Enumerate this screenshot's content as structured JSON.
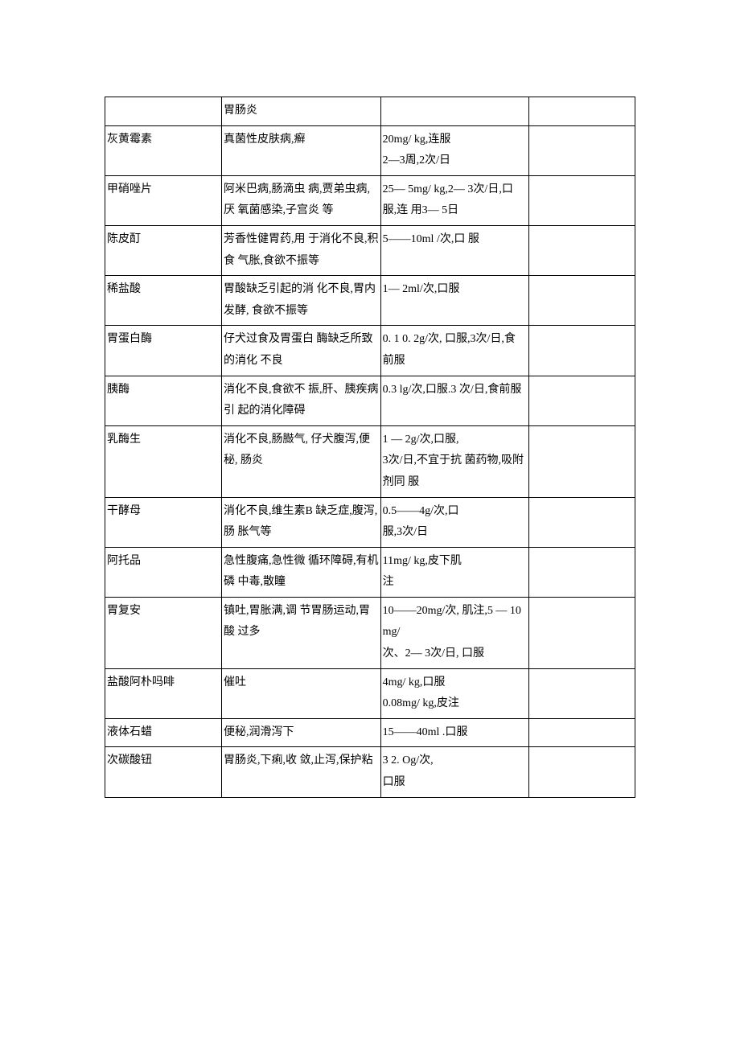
{
  "table": {
    "columns": 4,
    "border_color": "#000000",
    "background_color": "#ffffff",
    "font_size": 14,
    "text_color": "#000000",
    "rows": [
      {
        "c1": "",
        "c2": "胃肠炎",
        "c3": "",
        "c4": ""
      },
      {
        "c1": "灰黄霉素",
        "c2": "真菌性皮肤病,癣",
        "c3": "20mg/ kg,连服\n2—3周,2次/日",
        "c4": ""
      },
      {
        "c1": "甲硝唑片",
        "c2": "阿米巴病,肠滴虫 病,贾弟虫病,厌 氧菌感染,子宫炎 等",
        "c3": "25— 5mg/ kg,2— 3次/日,口服,连 用3— 5日",
        "c4": ""
      },
      {
        "c1": "陈皮酊",
        "c2": "芳香性健胃药,用 于消化不良,积食 气胀,食欲不振等",
        "c3": "5——10ml /次,口 服",
        "c4": ""
      },
      {
        "c1": "稀盐酸",
        "c2": "胃酸缺乏引起的消 化不良,胃内发酵, 食欲不振等",
        "c3": "1— 2ml/次,口服",
        "c4": ""
      },
      {
        "c1": "胃蛋白酶",
        "c2": "仔犬过食及胃蛋白 酶缺乏所致的消化 不良",
        "c3": "0. 1 0. 2g/次, 口服,3次/日,食 前服",
        "c4": ""
      },
      {
        "c1": "胰酶",
        "c2": "消化不良,食欲不 振,肝、胰疾病引 起的消化障碍",
        "c3": "0.3 lg/次,口服.3 次/日,食前服",
        "c4": ""
      },
      {
        "c1": "乳酶生",
        "c2": "消化不良,肠臌气, 仔犬腹泻,便秘, 肠炎",
        "c3": "1 — 2g/次,口服,\n3次/日,不宜于抗 菌药物,吸附剂同 服",
        "c4": ""
      },
      {
        "c1": "干酵母",
        "c2": "消化不良,维生素B 缺乏症,腹泻,肠 胀气等",
        "c3": "0.5——4g/次,口\n服,3次/日",
        "c4": ""
      },
      {
        "c1": "阿托品",
        "c2": "急性腹痛,急性微 循环障碍,有机磷 中毒,散瞳",
        "c3": "11mg/ kg,皮下肌\n注",
        "c4": ""
      },
      {
        "c1": "胃复安",
        "c2": "镇吐,胃胀满,调 节胃肠运动,胃酸 过多",
        "c3": "10——20mg/次, 肌注,5 — 10mg/\n次、2— 3次/日, 口服",
        "c4": ""
      },
      {
        "c1": "盐酸阿朴吗啡",
        "c2": "催吐",
        "c3": "4mg/ kg,口服\n0.08mg/ kg,皮注",
        "c4": ""
      },
      {
        "c1": "液体石蜡",
        "c2": "便秘,润滑泻下",
        "c3": "15——40ml .口服",
        "c4": ""
      },
      {
        "c1": "次碳酸钮",
        "c2": "胃肠炎,下痢,收 敛,止泻,保护粘",
        "c3": "3      2. Og/次,\n口服",
        "c4": ""
      }
    ]
  }
}
